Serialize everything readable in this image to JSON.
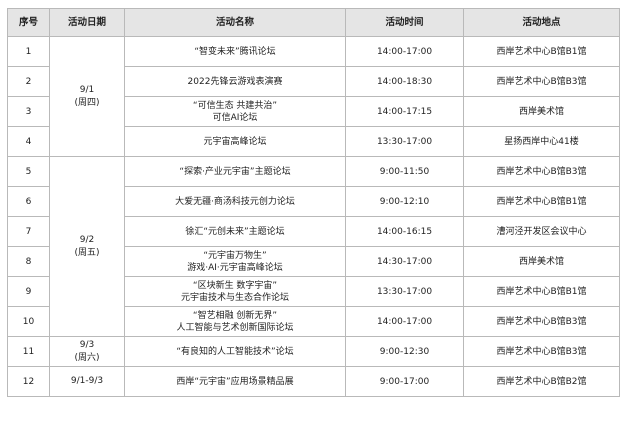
{
  "headers": {
    "index": "序号",
    "date": "活动日期",
    "name": "活动名称",
    "time": "活动时间",
    "venue": "活动地点"
  },
  "dates": {
    "d1": {
      "line1": "9/1",
      "line2": "(周四)"
    },
    "d2": {
      "line1": "9/2",
      "line2": "(周五)"
    },
    "d3": {
      "line1": "9/3",
      "line2": "(周六)"
    },
    "d4": {
      "line1": "9/1-9/3"
    }
  },
  "rows": [
    {
      "no": "1",
      "name1": "“智变未来”腾讯论坛",
      "name2": "",
      "time": "14:00-17:00",
      "venue": "西岸艺术中心B馆B1馆"
    },
    {
      "no": "2",
      "name1": "2022先锋云游戏表演赛",
      "name2": "",
      "time": "14:00-18:30",
      "venue": "西岸艺术中心B馆B3馆"
    },
    {
      "no": "3",
      "name1": "“可信生态 共建共治”",
      "name2": "可信AI论坛",
      "time": "14:00-17:15",
      "venue": "西岸美术馆"
    },
    {
      "no": "4",
      "name1": "元宇宙高峰论坛",
      "name2": "",
      "time": "13:30-17:00",
      "venue": "星扬西岸中心41楼"
    },
    {
      "no": "5",
      "name1": "“探索·产业元宇宙”主题论坛",
      "name2": "",
      "time": "9:00-11:50",
      "venue": "西岸艺术中心B馆B3馆"
    },
    {
      "no": "6",
      "name1": "大爱无疆·商汤科技元创力论坛",
      "name2": "",
      "time": "9:00-12:10",
      "venue": "西岸艺术中心B馆B1馆"
    },
    {
      "no": "7",
      "name1": "徐汇“元创未来”主题论坛",
      "name2": "",
      "time": "14:00-16:15",
      "venue": "漕河泾开发区会议中心"
    },
    {
      "no": "8",
      "name1": "“元宇宙万物生”",
      "name2": "游戏·AI·元宇宙高峰论坛",
      "time": "14:30-17:00",
      "venue": "西岸美术馆"
    },
    {
      "no": "9",
      "name1": "“区块新生 数字宇宙”",
      "name2": "元宇宙技术与生态合作论坛",
      "time": "13:30-17:00",
      "venue": "西岸艺术中心B馆B1馆"
    },
    {
      "no": "10",
      "name1": "“智艺相融 创新无界”",
      "name2": "人工智能与艺术创新国际论坛",
      "time": "14:00-17:00",
      "venue": "西岸艺术中心B馆B3馆"
    },
    {
      "no": "11",
      "name1": "“有良知的人工智能技术”论坛",
      "name2": "",
      "time": "9:00-12:30",
      "venue": "西岸艺术中心B馆B3馆"
    },
    {
      "no": "12",
      "name1": "西岸“元宇宙”应用场景精品展",
      "name2": "",
      "time": "9:00-17:00",
      "venue": "西岸艺术中心B馆B2馆"
    }
  ]
}
